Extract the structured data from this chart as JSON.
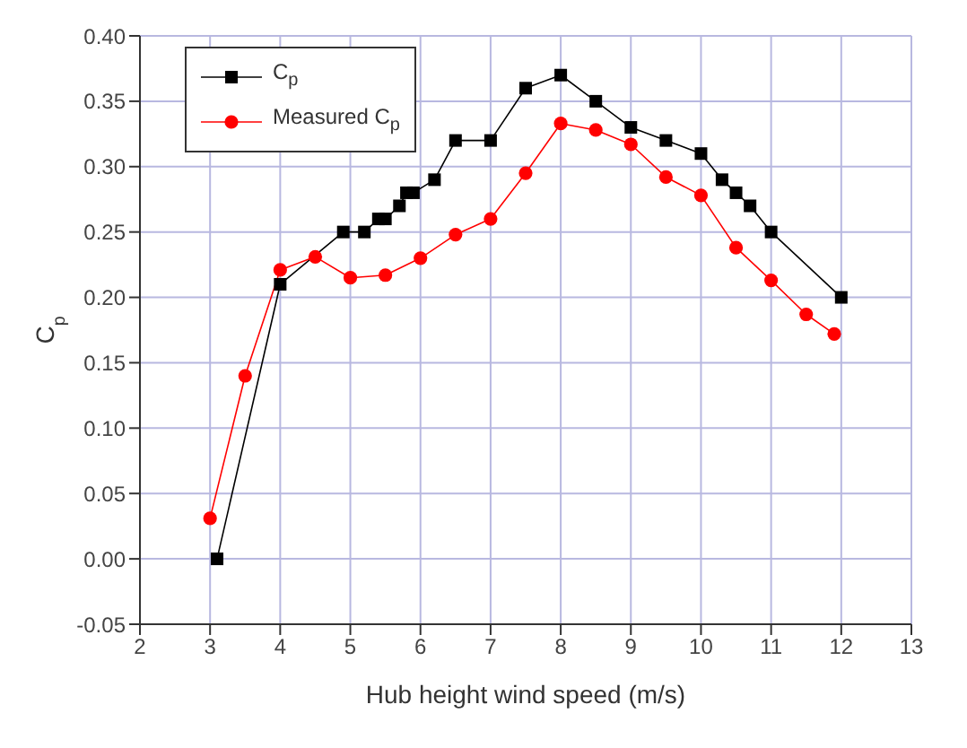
{
  "chart_data": {
    "type": "line",
    "xlabel": "Hub height wind speed (m/s)",
    "ylabel": "C$_{p}$",
    "xlim": [
      2,
      13
    ],
    "xticks": [
      2,
      3,
      4,
      5,
      6,
      7,
      8,
      9,
      10,
      11,
      12,
      13
    ],
    "ylim": [
      -0.05,
      0.4
    ],
    "yticks": [
      {
        "value": -0.05,
        "label": "-0.05"
      },
      {
        "value": 0,
        "label": "0.00"
      },
      {
        "value": 0.05,
        "label": "0.05"
      },
      {
        "value": 0.1,
        "label": "0.10"
      },
      {
        "value": 0.15,
        "label": "0.15"
      },
      {
        "value": 0.2,
        "label": "0.20"
      },
      {
        "value": 0.25,
        "label": "0.25"
      },
      {
        "value": 0.3,
        "label": "0.30"
      },
      {
        "value": 0.35,
        "label": "0.35"
      },
      {
        "value": 0.4,
        "label": "0.40"
      }
    ],
    "grid": true,
    "legend": "top left",
    "line_style": "solid",
    "series": [
      {
        "name": "C$_{p}$",
        "color": "#000000",
        "marker": "square",
        "x": [
          3.1,
          4,
          4.9,
          5.2,
          5.4,
          5.5,
          5.7,
          5.8,
          5.9,
          6.2,
          6.5,
          7,
          7.5,
          8,
          8.5,
          9,
          9.5,
          10,
          10.3,
          10.5,
          10.7,
          11,
          12
        ],
        "values": [
          0,
          0.21,
          0.25,
          0.25,
          0.26,
          0.26,
          0.27,
          0.28,
          0.28,
          0.29,
          0.32,
          0.32,
          0.36,
          0.37,
          0.35,
          0.33,
          0.32,
          0.31,
          0.29,
          0.28,
          0.27,
          0.25,
          0.2
        ]
      },
      {
        "name": "Measured C$_{p}$",
        "color": "#ff0000",
        "marker": "circle",
        "x": [
          3,
          3.5,
          4,
          4.5,
          5,
          5.5,
          6,
          6.5,
          7,
          7.5,
          8,
          8.5,
          9,
          9.5,
          10,
          10.5,
          11,
          11.5,
          11.9
        ],
        "values": [
          0.031,
          0.14,
          0.221,
          0.231,
          0.215,
          0.217,
          0.23,
          0.248,
          0.26,
          0.295,
          0.333,
          0.328,
          0.317,
          0.292,
          0.278,
          0.238,
          0.213,
          0.187,
          0.172
        ]
      }
    ]
  }
}
